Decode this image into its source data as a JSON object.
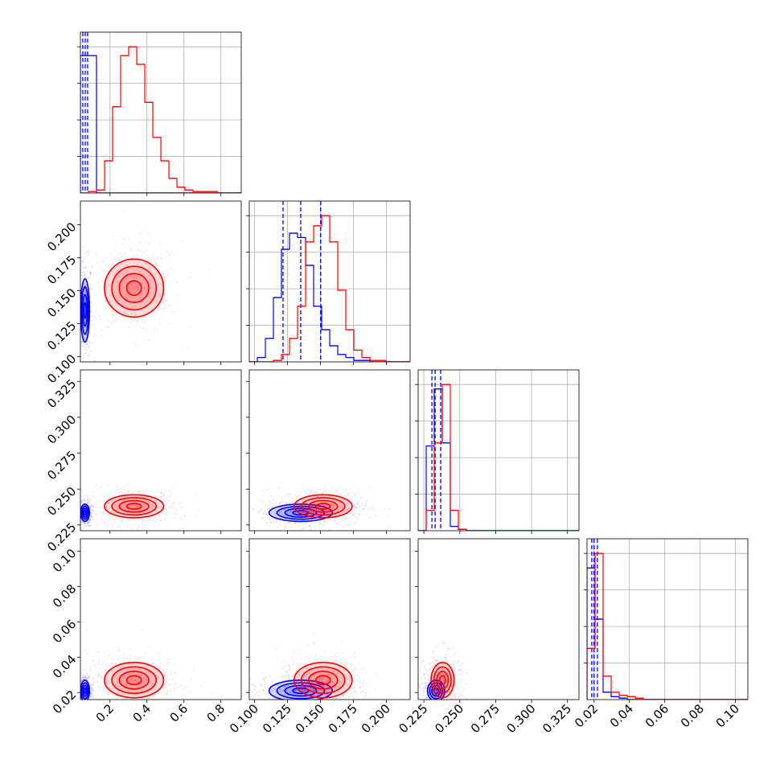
{
  "chart_data": {
    "type": "corner",
    "grid": true,
    "hist_ylim": [
      0,
      110
    ],
    "hist_yticks": [
      25,
      50,
      75,
      100
    ],
    "contour_levels": [
      0.5,
      1,
      1.5,
      2
    ],
    "params": [
      {
        "lim": [
          0.04,
          0.91
        ],
        "ticks": [
          0.2,
          0.4,
          0.6,
          0.8
        ],
        "bins": [
          0.04,
          0.0835,
          0.127,
          0.1705,
          0.214,
          0.2575,
          0.301,
          0.3445,
          0.388,
          0.4315,
          0.475,
          0.5185,
          0.562,
          0.6055,
          0.649,
          0.6925,
          0.736,
          0.7795,
          0.823,
          0.8665,
          0.91
        ]
      },
      {
        "lim": [
          0.096,
          0.218
        ],
        "ticks": [
          {
            "value": 0.1,
            "label": "0.100"
          },
          0.125,
          {
            "value": 0.15,
            "label": "0.150"
          },
          0.175,
          {
            "value": 0.2,
            "label": "0.200"
          }
        ],
        "bins": [
          0.096,
          0.1021,
          0.1082,
          0.1143,
          0.1204,
          0.1265,
          0.1326,
          0.1387,
          0.1448,
          0.1509,
          0.157,
          0.1631,
          0.1692,
          0.1753,
          0.1814,
          0.1875,
          0.1936,
          0.1997,
          0.2058,
          0.2119,
          0.218
        ]
      },
      {
        "lim": [
          0.221,
          0.333
        ],
        "ticks": [
          0.225,
          {
            "value": 0.25,
            "label": "0.250"
          },
          0.275,
          {
            "value": 0.3,
            "label": "0.300"
          },
          0.325
        ],
        "bins": [
          0.221,
          0.2266,
          0.2322,
          0.2378,
          0.2434,
          0.249,
          0.2546,
          0.2602,
          0.2658,
          0.2714,
          0.277,
          0.2826,
          0.2882,
          0.2938,
          0.2994,
          0.305,
          0.3106,
          0.3162,
          0.3218,
          0.3274,
          0.333
        ]
      },
      {
        "lim": [
          0.016,
          0.107
        ],
        "ticks": [
          0.02,
          0.04,
          0.06,
          0.08,
          {
            "value": 0.1,
            "label": "0.10"
          }
        ],
        "bins": [
          0.016,
          0.02055,
          0.0251,
          0.02965,
          0.0342,
          0.03875,
          0.0433,
          0.04785,
          0.0524,
          0.05695,
          0.0615,
          0.06605,
          0.0706,
          0.07515,
          0.0797,
          0.08425,
          0.0888,
          0.09335,
          0.0979,
          0.10245,
          0.107
        ]
      }
    ],
    "series": [
      {
        "color": "#0000ff",
        "mean": [
          0.065,
          0.135,
          0.2335,
          0.021
        ],
        "std": [
          0.012,
          0.012,
          0.003,
          0.003
        ],
        "quantiles": [
          [
            0.053,
            0.066,
            0.079
          ],
          [
            0.1216,
            0.135,
            0.1502
          ],
          [
            0.2306,
            0.2328,
            0.2367
          ],
          [
            0.0187,
            0.02,
            0.0219
          ]
        ],
        "hist": [
          [
            94,
            94,
            0,
            0,
            0,
            0,
            0,
            0,
            0,
            0,
            0,
            0,
            0,
            0,
            0,
            0,
            0,
            0,
            0,
            0
          ],
          [
            0,
            3,
            16,
            44,
            77,
            88,
            85,
            66,
            38,
            22,
            11,
            5,
            3,
            1,
            1,
            0,
            0,
            0,
            0,
            0
          ],
          [
            0,
            58,
            97,
            60,
            3,
            1,
            0,
            0,
            0,
            0,
            0,
            0,
            0,
            0,
            0,
            0,
            0,
            0,
            0,
            0
          ],
          [
            90,
            55,
            5,
            2,
            1,
            0,
            0,
            0,
            0,
            0,
            0,
            0,
            0,
            0,
            0,
            0,
            0,
            0,
            0,
            0
          ]
        ]
      },
      {
        "color": "#ff0000",
        "mean": [
          0.33,
          0.152,
          0.238,
          0.027
        ],
        "std": [
          0.08,
          0.011,
          0.004,
          0.005
        ],
        "hist": [
          [
            0,
            1,
            2,
            22,
            59,
            94,
            100,
            88,
            62,
            38,
            22,
            10,
            4,
            2,
            1,
            1,
            1,
            0,
            0,
            0
          ],
          [
            0,
            0,
            0,
            1,
            5,
            16,
            38,
            82,
            93,
            100,
            82,
            49,
            22,
            8,
            3,
            1,
            1,
            0,
            0,
            0
          ],
          [
            0,
            14,
            60,
            100,
            14,
            1,
            0,
            0,
            0,
            0,
            0,
            0,
            0,
            0,
            0,
            0,
            0,
            0,
            0,
            0
          ],
          [
            35,
            100,
            16,
            5,
            3,
            2,
            1,
            0,
            0,
            0,
            0,
            0,
            0,
            0,
            0,
            0,
            0,
            0,
            0,
            0
          ]
        ]
      }
    ]
  }
}
